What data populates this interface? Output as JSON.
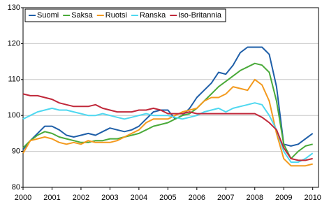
{
  "chart_data": {
    "type": "line",
    "x": [
      2000,
      2000.25,
      2000.5,
      2000.75,
      2001,
      2001.25,
      2001.5,
      2001.75,
      2002,
      2002.25,
      2002.5,
      2002.75,
      2003,
      2003.25,
      2003.5,
      2003.75,
      2004,
      2004.25,
      2004.5,
      2004.75,
      2005,
      2005.25,
      2005.5,
      2005.75,
      2006,
      2006.25,
      2006.5,
      2006.75,
      2007,
      2007.25,
      2007.5,
      2007.75,
      2008,
      2008.25,
      2008.5,
      2008.75,
      2009,
      2009.25,
      2009.5,
      2009.75,
      2010
    ],
    "series": [
      {
        "name": "Suomi",
        "color": "#1f5fa8",
        "values": [
          90.5,
          93,
          95,
          97,
          97,
          96,
          94.5,
          94,
          94.5,
          95,
          94.5,
          95.5,
          96.5,
          96,
          95.5,
          96,
          97,
          99,
          101,
          101.5,
          101.5,
          99,
          100,
          102,
          105,
          107,
          109,
          112,
          111.5,
          114,
          117.5,
          119,
          119,
          119,
          117,
          108,
          92,
          91.5,
          92,
          93.5,
          95
        ]
      },
      {
        "name": "Saksa",
        "color": "#4aaa3a",
        "values": [
          91,
          93,
          94.5,
          95.5,
          95,
          94,
          93.5,
          93,
          92.5,
          92.5,
          93,
          93,
          93.5,
          93.5,
          94,
          94.5,
          95,
          96,
          97,
          97.5,
          98,
          99,
          100,
          100.5,
          102,
          104,
          106,
          108,
          109.5,
          111,
          112.5,
          113.5,
          114.5,
          114,
          112,
          104,
          92,
          88,
          90,
          91.5,
          92
        ]
      },
      {
        "name": "Ruotsi",
        "color": "#f39a1e",
        "values": [
          89.5,
          93,
          93.5,
          94,
          93.5,
          92.5,
          92,
          92.5,
          92,
          93,
          92.5,
          92.5,
          92.5,
          93,
          94,
          95,
          96,
          98,
          99,
          99,
          99,
          100,
          101,
          101.5,
          102,
          104,
          105,
          105,
          106,
          108,
          107.5,
          107,
          110,
          108.5,
          104,
          95,
          88,
          86,
          86,
          86,
          86.5
        ]
      },
      {
        "name": "Ranska",
        "color": "#4fd8f0",
        "values": [
          99,
          100,
          101,
          101.5,
          102,
          101.5,
          101.5,
          101,
          100.5,
          100,
          100,
          100.5,
          100,
          99.5,
          99,
          99.5,
          100,
          100.5,
          100,
          100,
          100,
          99.5,
          99,
          99.5,
          100,
          101,
          101.5,
          102,
          101,
          102,
          102.5,
          103,
          103.5,
          103,
          100,
          96,
          90,
          87,
          87,
          88,
          89.5
        ]
      },
      {
        "name": "Iso-Britannia",
        "color": "#c0283a",
        "values": [
          106,
          105.5,
          105.5,
          105,
          104.5,
          103.5,
          103,
          102.5,
          102.5,
          102.5,
          103,
          102,
          101.5,
          101,
          101,
          101,
          101.5,
          101.5,
          102,
          101.5,
          100.5,
          100.5,
          100.5,
          101,
          100.5,
          100.5,
          100.5,
          100.5,
          100.5,
          100.5,
          100.5,
          100.5,
          100.5,
          99.5,
          98,
          96,
          91,
          88,
          87.5,
          87.5,
          88
        ]
      }
    ],
    "xlim": [
      2000,
      2010.2
    ],
    "xticks": [
      2000,
      2001,
      2002,
      2003,
      2004,
      2005,
      2006,
      2007,
      2008,
      2009,
      2010
    ],
    "ylim": [
      80,
      130
    ],
    "yticks": [
      80,
      90,
      100,
      110,
      120,
      130
    ],
    "grid": true,
    "legend": "top-left"
  }
}
